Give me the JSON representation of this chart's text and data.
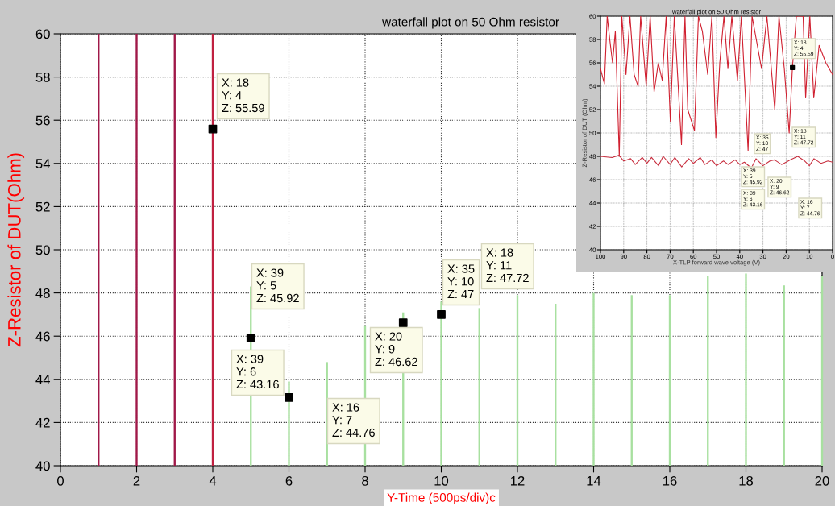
{
  "chart_data": [
    {
      "type": "bar",
      "title": "waterfall plot on 50 Ohm resistor",
      "xlabel": "Y-Time (500ps/div)c",
      "ylabel": "Z-Resistor of DUT(Ohm)",
      "xlim": [
        0,
        20
      ],
      "xticks": [
        0,
        2,
        4,
        6,
        8,
        10,
        12,
        14,
        16,
        18,
        20
      ],
      "ylim": [
        40,
        60
      ],
      "yticks": [
        40,
        42,
        44,
        46,
        48,
        50,
        52,
        54,
        56,
        58,
        60
      ],
      "grid": true,
      "legend": false,
      "series": [
        {
          "x": [
            1,
            2,
            3,
            4,
            5,
            6,
            7,
            8,
            9,
            10,
            11,
            12,
            13,
            14,
            15,
            16,
            17,
            18,
            19,
            20
          ],
          "values": [
            60,
            60,
            60,
            60,
            48.3,
            43.9,
            44.8,
            46.5,
            47.1,
            47.6,
            47.3,
            47.9,
            47.5,
            48.0,
            47.9,
            47.9,
            48.8,
            48.9,
            48.35,
            48.8
          ],
          "colors": [
            "#a01848",
            "#a01848",
            "#a01848",
            "#c02040",
            "#a8e0a0",
            "#a8e0a0",
            "#a8e0a0",
            "#a8e0a0",
            "#a8e0a0",
            "#a8e0a0",
            "#a8e0a0",
            "#a8e0a0",
            "#a8e0a0",
            "#a8e0a0",
            "#a8e0a0",
            "#a8e0a0",
            "#a8e0a0",
            "#a8e0a0",
            "#a8e0a0",
            "#a8e0a0"
          ]
        },
        {
          "type": "scatter",
          "x": [
            4,
            5,
            6,
            9,
            10
          ],
          "values": [
            55.59,
            45.92,
            43.16,
            46.62,
            47
          ],
          "color": "#000000",
          "marker": "square"
        }
      ],
      "annotations": [
        "X: 18\nY: 4\nZ: 55.59",
        "X: 39\nY: 5\nZ: 45.92",
        "X: 39\nY: 6\nZ: 43.16",
        "X: 16\nY: 7\nZ: 44.76",
        "X: 20\nY: 9\nZ: 46.62",
        "X: 35\nY: 10\nZ: 47",
        "X: 18\nY: 11\nZ: 47.72"
      ]
    },
    {
      "type": "line",
      "title": "waterfall plot on 50 Ohm resistor",
      "xlabel": "X-TLP forward wave voltage (V)",
      "ylabel": "Z-Resistor of DUT (Ohm)",
      "xlim": [
        100,
        0
      ],
      "xticks": [
        100,
        90,
        80,
        70,
        60,
        50,
        40,
        30,
        20,
        10,
        0
      ],
      "ylim": [
        40,
        60
      ],
      "yticks": [
        40,
        42,
        44,
        46,
        48,
        50,
        52,
        54,
        56,
        58,
        60
      ],
      "grid": true,
      "legend": false,
      "series": [
        {
          "color": "#d02030",
          "x": [
            100,
            98.3,
            97.1,
            96,
            94.8,
            93.6,
            91.9,
            90.8,
            89,
            87.3,
            85.5,
            83.8,
            82.7,
            80.3,
            78.6,
            76.9,
            75.1,
            73.4,
            71.7,
            69.9,
            68.2,
            65.1,
            63.6,
            62.4,
            59.5,
            57.8,
            56.1,
            53.8,
            52,
            50.3,
            48.6,
            46.8,
            45.1,
            43.4,
            41,
            39.3,
            36.4,
            34.7,
            30.6,
            28.3,
            24.9,
            23.1,
            20.8,
            18.7,
            17.3,
            15.6,
            12.7,
            11.6,
            9.8,
            8.1,
            5.8,
            2.9,
            0
          ],
          "values": [
            55.5,
            54.2,
            60,
            58,
            56,
            58.7,
            48,
            60,
            55,
            60,
            55,
            54,
            60,
            54,
            60,
            53.5,
            56,
            54.5,
            60,
            51,
            60,
            49,
            60,
            52,
            50.2,
            60,
            58.7,
            55,
            60,
            49.6,
            56,
            60,
            55.5,
            60,
            54.5,
            60,
            48.5,
            60,
            55.5,
            60,
            52,
            60,
            55.5,
            50,
            55.59,
            60,
            60,
            53,
            60,
            53,
            57.5,
            56,
            55
          ]
        },
        {
          "color": "#c83040",
          "x": [
            100,
            95,
            92,
            90,
            87,
            85,
            82,
            80,
            78,
            75,
            73,
            70,
            68,
            65,
            62,
            60,
            57,
            55,
            52,
            50,
            47,
            45,
            42,
            40,
            38,
            35,
            33,
            30,
            27,
            25,
            22,
            20,
            18,
            15,
            12,
            10,
            8,
            5,
            2,
            0
          ],
          "values": [
            48,
            47.9,
            48.1,
            47.6,
            47.8,
            47.3,
            47.9,
            47.4,
            47.9,
            47.2,
            48,
            47.3,
            47.9,
            47.1,
            47.8,
            47.4,
            47.9,
            47.3,
            47.7,
            47.2,
            47.6,
            47.3,
            47.7,
            47.3,
            47.5,
            47,
            47.8,
            47.2,
            47.6,
            47.7,
            47.3,
            47.5,
            47.72,
            48,
            47.6,
            47.2,
            47.8,
            47.4,
            47.6,
            47.5
          ]
        },
        {
          "type": "scatter",
          "x": [
            17.3
          ],
          "values": [
            55.59
          ],
          "color": "#000000",
          "marker": "square"
        }
      ],
      "annotations": [
        "X: 18\nY: 4\nZ: 55.59",
        "X: 35\nY: 10\nZ: 47",
        "X: 39\nY: 5\nZ: 45.92",
        "X: 20\nY: 9\nZ: 46.62",
        "X: 39\nY: 6\nZ: 43.16",
        "X: 18\nY: 11\nZ: 47.72",
        "X: 16\nY: 7\nZ: 44.76"
      ]
    }
  ]
}
